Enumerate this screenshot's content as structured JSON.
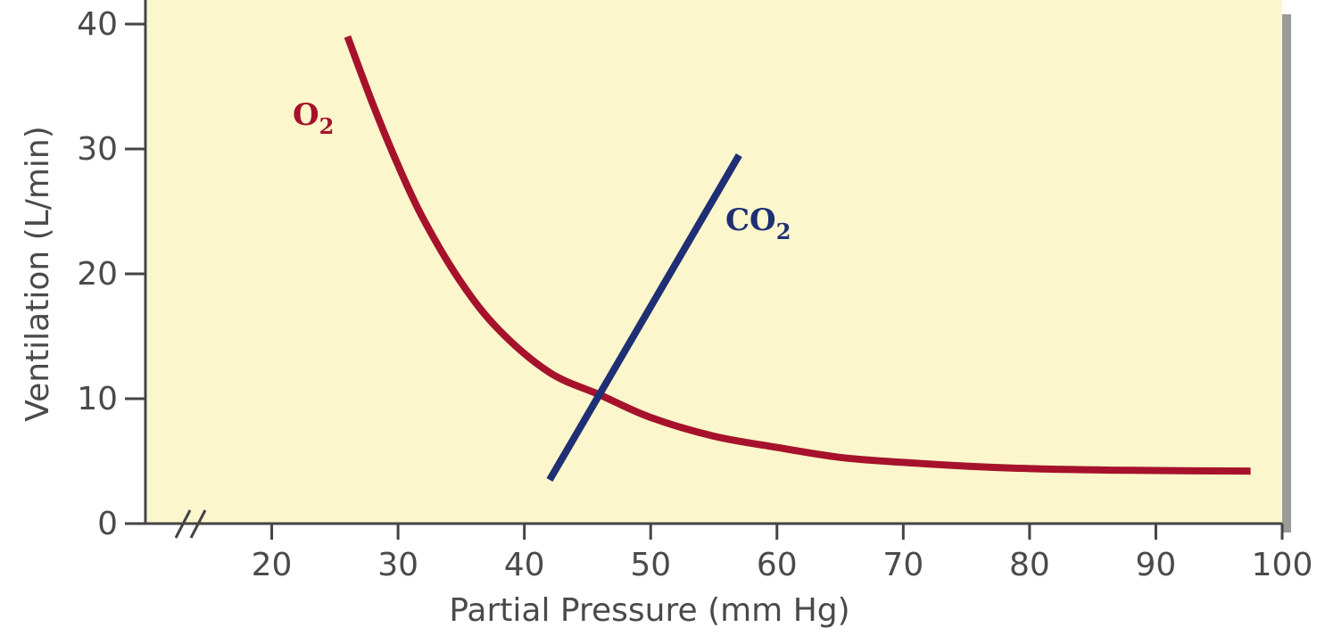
{
  "chart_data": {
    "type": "line",
    "xlabel": "Partial Pressure (mm Hg)",
    "ylabel": "Ventilation (L/min)",
    "xlim": [
      10,
      100
    ],
    "ylim": [
      0,
      40
    ],
    "x_ticks": [
      20,
      30,
      40,
      50,
      60,
      70,
      80,
      90,
      100
    ],
    "y_ticks": [
      0,
      10,
      20,
      30,
      40
    ],
    "axis_break": "x-axis",
    "grid": false,
    "legend": "inline labels",
    "plot_background": "#fbf6cc",
    "series": [
      {
        "name": "O",
        "subscript": "2",
        "color": "#a6122b",
        "x": [
          26,
          28,
          30,
          32,
          35,
          38,
          42,
          46,
          50,
          55,
          60,
          65,
          70,
          75,
          80,
          85,
          90,
          97.5
        ],
        "y": [
          39,
          33.6,
          28.7,
          24.4,
          19.3,
          15.5,
          12.1,
          10.3,
          8.5,
          7.0,
          6.1,
          5.3,
          4.9,
          4.6,
          4.4,
          4.3,
          4.25,
          4.2
        ]
      },
      {
        "name": "CO",
        "subscript": "2",
        "color": "#1f2f74",
        "x": [
          42,
          57
        ],
        "y": [
          3.5,
          29.5
        ]
      }
    ]
  }
}
